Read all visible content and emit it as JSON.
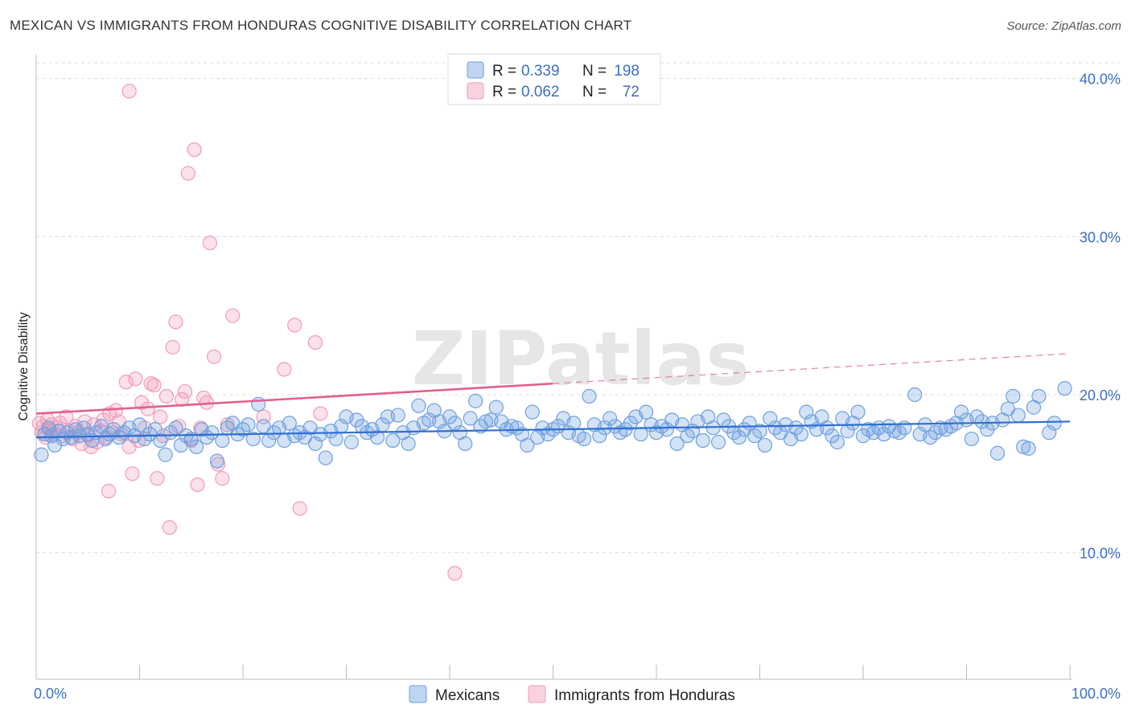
{
  "title": "MEXICAN VS IMMIGRANTS FROM HONDURAS COGNITIVE DISABILITY CORRELATION CHART",
  "source": "Source: ZipAtlas.com",
  "watermark": "ZIPatlas",
  "chart_data": {
    "type": "scatter",
    "ylabel": "Cognitive Disability",
    "xlim": [
      0,
      100
    ],
    "ylim": [
      2,
      41
    ],
    "x_tick_labels": [
      "0.0%",
      "100.0%"
    ],
    "y_ticks": [
      10,
      20,
      30,
      40
    ],
    "y_tick_labels": [
      "10.0%",
      "20.0%",
      "30.0%",
      "40.0%"
    ],
    "grid": true,
    "legend_position": "top-center",
    "series": [
      {
        "name": "Mexicans",
        "color": "#6fa0e0",
        "line_color": "#2f6fcf",
        "r_label": "R =",
        "r_value": "0.339",
        "n_label": "N =",
        "n_value": "198",
        "trend": {
          "x": [
            0,
            100
          ],
          "y": [
            17.3,
            18.3
          ]
        },
        "points": [
          [
            0.5,
            16.2
          ],
          [
            0.8,
            17.5
          ],
          [
            1.2,
            17.9
          ],
          [
            1.5,
            17.4
          ],
          [
            1.8,
            16.8
          ],
          [
            2.2,
            17.7
          ],
          [
            2.6,
            17.2
          ],
          [
            3.0,
            17.6
          ],
          [
            3.4,
            17.3
          ],
          [
            3.8,
            17.8
          ],
          [
            4.2,
            17.4
          ],
          [
            4.6,
            17.9
          ],
          [
            5.0,
            17.5
          ],
          [
            5.4,
            17.1
          ],
          [
            5.8,
            17.6
          ],
          [
            6.3,
            18.0
          ],
          [
            6.7,
            17.2
          ],
          [
            7.1,
            17.5
          ],
          [
            7.5,
            17.8
          ],
          [
            8.0,
            17.3
          ],
          [
            8.5,
            17.6
          ],
          [
            9.0,
            17.9
          ],
          [
            9.5,
            17.4
          ],
          [
            10.0,
            18.1
          ],
          [
            10.5,
            17.2
          ],
          [
            11.0,
            17.5
          ],
          [
            11.5,
            17.8
          ],
          [
            12.0,
            17.1
          ],
          [
            12.5,
            16.2
          ],
          [
            13.0,
            17.6
          ],
          [
            13.5,
            17.9
          ],
          [
            14.0,
            16.8
          ],
          [
            14.5,
            17.4
          ],
          [
            15.0,
            17.2
          ],
          [
            15.5,
            16.7
          ],
          [
            16.0,
            17.8
          ],
          [
            16.5,
            17.3
          ],
          [
            17.0,
            17.6
          ],
          [
            17.5,
            15.8
          ],
          [
            18.0,
            17.1
          ],
          [
            18.5,
            17.9
          ],
          [
            19.0,
            18.2
          ],
          [
            19.5,
            17.5
          ],
          [
            20.0,
            17.8
          ],
          [
            20.5,
            18.1
          ],
          [
            21.0,
            17.2
          ],
          [
            21.5,
            19.4
          ],
          [
            22.0,
            18.0
          ],
          [
            22.5,
            17.1
          ],
          [
            23.0,
            17.6
          ],
          [
            23.5,
            17.9
          ],
          [
            24.0,
            17.1
          ],
          [
            24.5,
            18.2
          ],
          [
            25.0,
            17.4
          ],
          [
            25.5,
            17.6
          ],
          [
            26.0,
            17.3
          ],
          [
            26.5,
            17.9
          ],
          [
            27.0,
            16.9
          ],
          [
            27.5,
            17.5
          ],
          [
            28.0,
            16.0
          ],
          [
            28.5,
            17.7
          ],
          [
            29.0,
            17.2
          ],
          [
            29.5,
            18.0
          ],
          [
            30.0,
            18.6
          ],
          [
            30.5,
            17.0
          ],
          [
            31.0,
            18.4
          ],
          [
            31.5,
            18.0
          ],
          [
            32.0,
            17.6
          ],
          [
            32.5,
            17.8
          ],
          [
            33.0,
            17.3
          ],
          [
            33.5,
            18.1
          ],
          [
            34.0,
            18.6
          ],
          [
            34.5,
            17.1
          ],
          [
            35.0,
            18.7
          ],
          [
            35.5,
            17.6
          ],
          [
            36.0,
            16.9
          ],
          [
            36.5,
            17.9
          ],
          [
            37.0,
            19.3
          ],
          [
            37.5,
            18.2
          ],
          [
            38.0,
            18.4
          ],
          [
            38.5,
            19.0
          ],
          [
            39.0,
            18.3
          ],
          [
            39.5,
            17.7
          ],
          [
            40.0,
            18.6
          ],
          [
            40.5,
            18.2
          ],
          [
            41.0,
            17.6
          ],
          [
            41.5,
            16.9
          ],
          [
            42.0,
            18.5
          ],
          [
            42.5,
            19.6
          ],
          [
            43.0,
            18.0
          ],
          [
            43.5,
            18.3
          ],
          [
            44.0,
            18.4
          ],
          [
            44.5,
            19.2
          ],
          [
            45.0,
            18.3
          ],
          [
            45.5,
            17.8
          ],
          [
            46.0,
            18.0
          ],
          [
            46.5,
            17.9
          ],
          [
            47.0,
            17.5
          ],
          [
            47.5,
            16.8
          ],
          [
            48.0,
            18.9
          ],
          [
            48.5,
            17.3
          ],
          [
            49.0,
            17.9
          ],
          [
            49.5,
            17.5
          ],
          [
            50.0,
            17.8
          ],
          [
            50.5,
            18.0
          ],
          [
            51.0,
            18.5
          ],
          [
            51.5,
            17.6
          ],
          [
            52.0,
            18.2
          ],
          [
            52.5,
            17.4
          ],
          [
            53.0,
            17.2
          ],
          [
            53.5,
            19.9
          ],
          [
            54.0,
            18.1
          ],
          [
            54.5,
            17.4
          ],
          [
            55.0,
            17.9
          ],
          [
            55.5,
            18.5
          ],
          [
            56.0,
            18.0
          ],
          [
            56.5,
            17.6
          ],
          [
            57.0,
            17.8
          ],
          [
            57.5,
            18.2
          ],
          [
            58.0,
            18.6
          ],
          [
            58.5,
            17.5
          ],
          [
            59.0,
            18.9
          ],
          [
            59.5,
            18.1
          ],
          [
            60.0,
            17.6
          ],
          [
            60.5,
            18.0
          ],
          [
            61.0,
            17.8
          ],
          [
            61.5,
            18.4
          ],
          [
            62.0,
            16.9
          ],
          [
            62.5,
            18.1
          ],
          [
            63.0,
            17.4
          ],
          [
            63.5,
            17.7
          ],
          [
            64.0,
            18.3
          ],
          [
            64.5,
            17.1
          ],
          [
            65.0,
            18.6
          ],
          [
            65.5,
            17.9
          ],
          [
            66.0,
            17.0
          ],
          [
            66.5,
            18.4
          ],
          [
            67.0,
            18.0
          ],
          [
            67.5,
            17.6
          ],
          [
            68.0,
            17.3
          ],
          [
            68.5,
            17.8
          ],
          [
            69.0,
            18.2
          ],
          [
            69.5,
            17.4
          ],
          [
            70.0,
            17.7
          ],
          [
            70.5,
            16.8
          ],
          [
            71.0,
            18.5
          ],
          [
            71.5,
            17.9
          ],
          [
            72.0,
            17.6
          ],
          [
            72.5,
            18.1
          ],
          [
            73.0,
            17.2
          ],
          [
            73.5,
            17.9
          ],
          [
            74.0,
            17.5
          ],
          [
            74.5,
            18.9
          ],
          [
            75.0,
            18.3
          ],
          [
            75.5,
            17.8
          ],
          [
            76.0,
            18.6
          ],
          [
            76.5,
            17.9
          ],
          [
            77.0,
            17.4
          ],
          [
            77.5,
            17.0
          ],
          [
            78.0,
            18.5
          ],
          [
            78.5,
            17.7
          ],
          [
            79.0,
            18.2
          ],
          [
            79.5,
            18.9
          ],
          [
            80.0,
            17.4
          ],
          [
            80.5,
            17.8
          ],
          [
            81.0,
            17.6
          ],
          [
            81.5,
            17.9
          ],
          [
            82.0,
            17.5
          ],
          [
            82.5,
            18.0
          ],
          [
            83.0,
            17.7
          ],
          [
            83.5,
            17.6
          ],
          [
            84.0,
            17.9
          ],
          [
            85.0,
            20.0
          ],
          [
            85.5,
            17.5
          ],
          [
            86.0,
            18.1
          ],
          [
            86.5,
            17.3
          ],
          [
            87.0,
            17.6
          ],
          [
            87.5,
            17.9
          ],
          [
            88.0,
            17.8
          ],
          [
            88.5,
            18.0
          ],
          [
            89.0,
            18.2
          ],
          [
            89.5,
            18.9
          ],
          [
            90.0,
            18.4
          ],
          [
            90.5,
            17.2
          ],
          [
            91.0,
            18.6
          ],
          [
            91.5,
            18.3
          ],
          [
            92.0,
            17.8
          ],
          [
            92.5,
            18.2
          ],
          [
            93.0,
            16.3
          ],
          [
            93.5,
            18.4
          ],
          [
            94.0,
            19.1
          ],
          [
            94.5,
            19.9
          ],
          [
            95.0,
            18.7
          ],
          [
            95.5,
            16.7
          ],
          [
            96.0,
            16.6
          ],
          [
            96.5,
            19.2
          ],
          [
            97.0,
            19.9
          ],
          [
            98.0,
            17.6
          ],
          [
            98.5,
            18.2
          ],
          [
            99.5,
            20.4
          ]
        ]
      },
      {
        "name": "Immigrants from Honduras",
        "color": "#f29bb8",
        "line_color": "#e0618c",
        "r_label": "R =",
        "r_value": "0.062",
        "n_label": "N =",
        "n_value": "72",
        "trend": {
          "x": [
            0,
            50
          ],
          "y": [
            18.8,
            20.7
          ]
        },
        "trend_ext": {
          "x": [
            50,
            100
          ],
          "y": [
            20.7,
            22.6
          ]
        },
        "points": [
          [
            0.3,
            18.2
          ],
          [
            0.5,
            17.6
          ],
          [
            0.7,
            18.0
          ],
          [
            0.9,
            17.3
          ],
          [
            1.1,
            18.4
          ],
          [
            1.3,
            17.8
          ],
          [
            1.5,
            18.1
          ],
          [
            1.7,
            17.5
          ],
          [
            2.0,
            17.9
          ],
          [
            2.3,
            18.2
          ],
          [
            2.6,
            17.4
          ],
          [
            2.9,
            18.6
          ],
          [
            3.2,
            17.7
          ],
          [
            3.5,
            17.2
          ],
          [
            3.8,
            18.0
          ],
          [
            4.1,
            17.6
          ],
          [
            4.4,
            16.9
          ],
          [
            4.7,
            18.3
          ],
          [
            5.0,
            17.4
          ],
          [
            5.3,
            16.7
          ],
          [
            5.6,
            18.1
          ],
          [
            5.9,
            17.0
          ],
          [
            6.2,
            17.7
          ],
          [
            6.5,
            18.4
          ],
          [
            6.8,
            17.3
          ],
          [
            7.1,
            18.8
          ],
          [
            7.4,
            17.6
          ],
          [
            7.7,
            19.0
          ],
          [
            8.0,
            18.3
          ],
          [
            8.3,
            17.5
          ],
          [
            8.7,
            20.8
          ],
          [
            9.0,
            16.7
          ],
          [
            9.3,
            15.0
          ],
          [
            9.6,
            21.0
          ],
          [
            9.9,
            17.1
          ],
          [
            10.2,
            19.5
          ],
          [
            10.5,
            17.9
          ],
          [
            10.8,
            19.1
          ],
          [
            11.1,
            20.7
          ],
          [
            11.4,
            20.6
          ],
          [
            11.7,
            14.7
          ],
          [
            12.0,
            18.6
          ],
          [
            12.3,
            17.4
          ],
          [
            12.6,
            19.9
          ],
          [
            12.9,
            11.6
          ],
          [
            13.2,
            23.0
          ],
          [
            13.5,
            24.6
          ],
          [
            13.8,
            18.0
          ],
          [
            14.1,
            19.7
          ],
          [
            14.4,
            20.2
          ],
          [
            14.7,
            34.0
          ],
          [
            15.0,
            17.1
          ],
          [
            15.3,
            35.5
          ],
          [
            15.6,
            14.3
          ],
          [
            15.9,
            17.9
          ],
          [
            16.2,
            19.8
          ],
          [
            16.5,
            19.5
          ],
          [
            16.8,
            29.6
          ],
          [
            17.2,
            22.4
          ],
          [
            17.6,
            15.6
          ],
          [
            18.0,
            14.7
          ],
          [
            18.5,
            18.1
          ],
          [
            19.0,
            25.0
          ],
          [
            9.0,
            39.2
          ],
          [
            7.0,
            13.9
          ],
          [
            22.0,
            18.6
          ],
          [
            24.0,
            21.6
          ],
          [
            25.0,
            24.4
          ],
          [
            25.5,
            12.8
          ],
          [
            27.0,
            23.3
          ],
          [
            27.5,
            18.8
          ],
          [
            40.5,
            8.7
          ]
        ]
      }
    ]
  }
}
